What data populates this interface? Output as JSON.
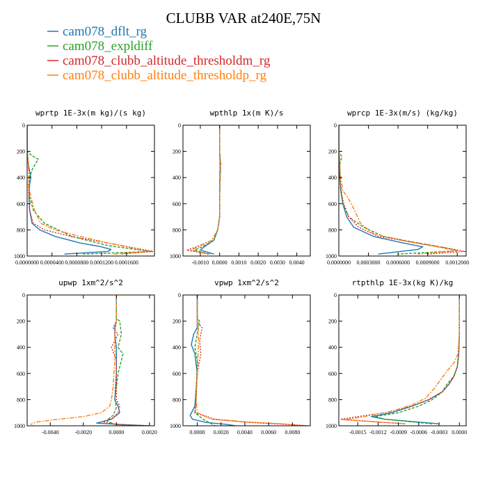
{
  "figure": {
    "title": "CLUBB VAR at240E,75N",
    "legend": [
      {
        "label": "cam078_dflt_rg",
        "color": "#1f77b4"
      },
      {
        "label": "cam078_expldiff",
        "color": "#2ca02c"
      },
      {
        "label": "cam078_clubb_altitude_thresholdm_rg",
        "color": "#d62728"
      },
      {
        "label": "cam078_clubb_altitude_thresholdp_rg",
        "color": "#ff7f0e"
      }
    ]
  },
  "chart_data": [
    {
      "type": "line",
      "title": "wprtp  1E-3x(m kg)/(s kg)",
      "xlim": [
        0,
        0.000205
      ],
      "ylim": [
        1000,
        0
      ],
      "xticks": [
        0,
        4e-05,
        8e-05,
        0.00012,
        0.00016
      ],
      "xtick_labels": [
        "0.0000000",
        "0.0000400",
        "0.0000800",
        "0.0001200",
        "0.0001600"
      ],
      "yticks": [
        0,
        200,
        400,
        600,
        800,
        1000
      ],
      "ytick_labels": [
        "0",
        "200",
        "400",
        "600",
        "800",
        "1000"
      ],
      "series": [
        {
          "name": "cam078_dflt_rg",
          "x": [
            0,
            0,
            2e-06,
            6e-06,
            4e-06,
            3e-06,
            4e-06,
            8e-06,
            2e-05,
            4.5e-05,
            8.5e-05,
            0.00012,
            0.000135,
            0.00013,
            6e-05
          ],
          "y": [
            0,
            200,
            300,
            400,
            450,
            550,
            650,
            750,
            800,
            850,
            900,
            930,
            950,
            965,
            985
          ]
        },
        {
          "name": "cam078_expldiff",
          "x": [
            0,
            0,
            7e-06,
            1.8e-05,
            9e-06,
            4e-06,
            3e-06,
            4e-06,
            1e-05,
            2.8e-05,
            7.2e-05,
            0.00013,
            0.000175,
            0.0002,
            9e-05
          ],
          "y": [
            0,
            200,
            230,
            260,
            330,
            400,
            450,
            550,
            650,
            750,
            850,
            920,
            950,
            965,
            985
          ]
        },
        {
          "name": "cam078_clubb_altitude_thresholdm_rg",
          "x": [
            0,
            0,
            2e-06,
            3e-06,
            2e-06,
            3e-06,
            4e-06,
            1e-05,
            2.8e-05,
            7e-05,
            0.00013,
            0.000175,
            0.000203,
            0.00015
          ],
          "y": [
            0,
            200,
            300,
            400,
            450,
            550,
            650,
            750,
            800,
            850,
            900,
            940,
            965,
            985
          ]
        },
        {
          "name": "cam078_clubb_altitude_thresholdp_rg",
          "x": [
            0,
            0,
            2e-06,
            3e-06,
            2e-06,
            6e-06,
            1.2e-05,
            2.2e-05,
            4.5e-05,
            8.5e-05,
            0.00013,
            0.00017,
            0.000195,
            0.00014
          ],
          "y": [
            0,
            200,
            300,
            400,
            450,
            550,
            650,
            750,
            800,
            850,
            900,
            940,
            965,
            985
          ]
        }
      ]
    },
    {
      "type": "line",
      "title": "wpthlp  1x(m K)/s",
      "xlim": [
        -0.0019,
        0.0047
      ],
      "ylim": [
        1000,
        0
      ],
      "xticks": [
        -0.001,
        0,
        0.001,
        0.002,
        0.003,
        0.004
      ],
      "xtick_labels": [
        "-0.0010",
        "0.0000",
        "0.0010",
        "0.0020",
        "0.0030",
        "0.0040"
      ],
      "yticks": [
        0,
        200,
        400,
        600,
        800,
        1000
      ],
      "ytick_labels": [
        "0",
        "200",
        "400",
        "600",
        "800",
        "1000"
      ],
      "series": [
        {
          "name": "cam078_dflt_rg",
          "x": [
            0,
            0,
            2e-05,
            1e-05,
            0,
            0,
            -0.0001,
            -0.0003,
            -0.0008,
            -0.001,
            -0.0003
          ],
          "y": [
            0,
            200,
            300,
            400,
            550,
            700,
            800,
            880,
            930,
            955,
            985
          ]
        },
        {
          "name": "cam078_expldiff",
          "x": [
            0,
            0,
            5e-05,
            3e-05,
            0,
            0,
            -0.0001,
            -0.0003,
            -0.0009,
            -0.0013,
            -0.0005
          ],
          "y": [
            0,
            200,
            300,
            400,
            550,
            700,
            800,
            880,
            930,
            955,
            985
          ]
        },
        {
          "name": "cam078_clubb_altitude_thresholdm_rg",
          "x": [
            0,
            0,
            5e-05,
            3e-05,
            0,
            0,
            -0.0001,
            -0.0004,
            -0.0012,
            -0.0017,
            -0.0006
          ],
          "y": [
            0,
            200,
            300,
            400,
            550,
            700,
            800,
            880,
            930,
            955,
            985
          ]
        },
        {
          "name": "cam078_clubb_altitude_thresholdp_rg",
          "x": [
            0,
            0,
            2e-05,
            1e-05,
            0,
            0,
            -0.0001,
            -0.0004,
            -0.0011,
            -0.0015,
            -0.0005
          ],
          "y": [
            0,
            200,
            300,
            400,
            550,
            700,
            800,
            880,
            930,
            955,
            985
          ]
        }
      ]
    },
    {
      "type": "line",
      "title": "wprcp  1E-3x(m/s) (kg/kg)",
      "xlim": [
        0,
        0.00129
      ],
      "ylim": [
        1000,
        0
      ],
      "xticks": [
        0,
        0.0003,
        0.0006,
        0.0009,
        0.0012
      ],
      "xtick_labels": [
        "0.0000000",
        "0.0003000",
        "0.0006000",
        "0.0009000",
        "0.0012000"
      ],
      "yticks": [
        0,
        200,
        400,
        600,
        800,
        1000
      ],
      "ytick_labels": [
        "0",
        "200",
        "400",
        "600",
        "800",
        "1000"
      ],
      "series": [
        {
          "name": "cam078_dflt_rg",
          "x": [
            0,
            0,
            1e-05,
            1e-05,
            2e-05,
            4e-05,
            8e-05,
            0.00015,
            0.00035,
            0.00065,
            0.00085,
            0.0008,
            0.0004
          ],
          "y": [
            0,
            200,
            300,
            400,
            500,
            600,
            700,
            780,
            850,
            900,
            930,
            950,
            985
          ]
        },
        {
          "name": "cam078_expldiff",
          "x": [
            0,
            0,
            3e-05,
            1e-05,
            1e-05,
            4e-05,
            0.0001,
            0.00025,
            0.00045,
            0.0008,
            0.0011,
            0.0012,
            0.0006
          ],
          "y": [
            0,
            200,
            240,
            300,
            400,
            600,
            700,
            780,
            850,
            900,
            940,
            960,
            985
          ]
        },
        {
          "name": "cam078_clubb_altitude_thresholdm_rg",
          "x": [
            0,
            0,
            1e-05,
            1e-05,
            2e-05,
            5e-05,
            0.0001,
            0.0002,
            0.0004,
            0.0008,
            0.0011,
            0.00128,
            0.0009
          ],
          "y": [
            0,
            200,
            300,
            400,
            500,
            600,
            700,
            780,
            850,
            900,
            940,
            965,
            985
          ]
        },
        {
          "name": "cam078_clubb_altitude_thresholdp_rg",
          "x": [
            0,
            0,
            1e-05,
            2e-05,
            4e-05,
            9e-05,
            0.00016,
            0.00022,
            0.00035,
            0.0007,
            0.001,
            0.0012,
            0.0008
          ],
          "y": [
            0,
            200,
            300,
            400,
            500,
            550,
            650,
            750,
            830,
            890,
            930,
            960,
            985
          ]
        }
      ]
    },
    {
      "type": "line",
      "title": "upwp  1xm^2/s^2",
      "xlim": [
        -0.0054,
        0.0023
      ],
      "ylim": [
        1000,
        0
      ],
      "xticks": [
        -0.004,
        -0.002,
        0,
        0.002
      ],
      "xtick_labels": [
        "-0.0040",
        "-0.0020",
        "0.0000",
        "0.0020"
      ],
      "yticks": [
        0,
        200,
        400,
        600,
        800,
        1000
      ],
      "ytick_labels": [
        "0",
        "200",
        "400",
        "600",
        "800",
        "1000"
      ],
      "series": [
        {
          "name": "cam078_dflt_rg",
          "x": [
            0,
            0,
            -0.0001,
            -0.0001,
            0,
            0,
            -0.0001,
            0.0001,
            0.0002,
            -0.0003,
            -0.0012,
            0.0002,
            0.0019
          ],
          "y": [
            0,
            200,
            250,
            300,
            400,
            600,
            800,
            850,
            900,
            950,
            980,
            990,
            1000
          ]
        },
        {
          "name": "cam078_expldiff",
          "x": [
            0,
            0,
            0.0002,
            0.0003,
            0.0001,
            0.0004,
            0.0001,
            -0.0001,
            0,
            -0.0002,
            -0.0006,
            -0.0002,
            0.0006
          ],
          "y": [
            0,
            180,
            200,
            300,
            400,
            450,
            600,
            800,
            860,
            920,
            960,
            985,
            1000
          ]
        },
        {
          "name": "cam078_clubb_altitude_thresholdm_rg",
          "x": [
            0,
            0,
            -0.0002,
            0.0001,
            -0.0003,
            0,
            0,
            0.0002,
            0.0001,
            -0.0002,
            -0.0008,
            0,
            0.0021
          ],
          "y": [
            0,
            200,
            250,
            300,
            400,
            500,
            800,
            850,
            900,
            940,
            970,
            990,
            1000
          ]
        },
        {
          "name": "cam078_clubb_altitude_thresholdp_rg",
          "x": [
            0,
            0,
            -0.0001,
            -0.0001,
            -0.0002,
            -0.0003,
            -0.0004,
            -0.0009,
            -0.002,
            -0.0035,
            -0.0048,
            -0.0052
          ],
          "y": [
            0,
            200,
            300,
            500,
            700,
            800,
            850,
            900,
            930,
            950,
            970,
            990
          ]
        }
      ]
    },
    {
      "type": "line",
      "title": "vpwp  1xm^2/s^2",
      "xlim": [
        -0.0012,
        0.0095
      ],
      "ylim": [
        1000,
        0
      ],
      "xticks": [
        0,
        0.002,
        0.004,
        0.006,
        0.008
      ],
      "xtick_labels": [
        "0.0000",
        "0.0020",
        "0.0040",
        "0.0060",
        "0.0080"
      ],
      "yticks": [
        0,
        200,
        400,
        600,
        800,
        1000
      ],
      "ytick_labels": [
        "0",
        "200",
        "400",
        "600",
        "800",
        "1000"
      ],
      "series": [
        {
          "name": "cam078_dflt_rg",
          "x": [
            0,
            0,
            -0.0003,
            -0.0005,
            -0.0002,
            0,
            -0.0002,
            -0.0006,
            -0.0004,
            0.0008,
            0.0025,
            0.0032
          ],
          "y": [
            0,
            250,
            300,
            380,
            450,
            600,
            850,
            920,
            950,
            975,
            990,
            1000
          ]
        },
        {
          "name": "cam078_expldiff",
          "x": [
            0,
            0,
            0.0002,
            0,
            -0.0002,
            0,
            -0.0001,
            -0.0002,
            0.0005,
            0.001,
            0.0015
          ],
          "y": [
            0,
            180,
            200,
            300,
            400,
            500,
            800,
            900,
            950,
            975,
            1000
          ]
        },
        {
          "name": "cam078_clubb_altitude_thresholdm_rg",
          "x": [
            0,
            0,
            0.0004,
            0.0002,
            0.0003,
            0,
            -0.0001,
            -0.0002,
            0.0015,
            0.0045,
            0.0075,
            0.0093
          ],
          "y": [
            0,
            200,
            250,
            350,
            450,
            600,
            800,
            900,
            950,
            975,
            990,
            1000
          ]
        },
        {
          "name": "cam078_clubb_altitude_thresholdp_rg",
          "x": [
            0,
            0,
            0.0001,
            0.0001,
            0,
            -0.0001,
            0,
            0.0012,
            0.004,
            0.0072,
            0.009
          ],
          "y": [
            0,
            200,
            300,
            400,
            600,
            800,
            900,
            950,
            970,
            985,
            1000
          ]
        }
      ]
    },
    {
      "type": "line",
      "title": "rtpthlp  1E-3x(kg K)/kg",
      "xlim": [
        -0.00178,
        0.0001
      ],
      "ylim": [
        1000,
        0
      ],
      "xticks": [
        -0.0015,
        -0.0012,
        -0.0009,
        -0.0006,
        -0.0003,
        0
      ],
      "xtick_labels": [
        "-0.0015",
        "-0.0012",
        "-0.0009",
        "-0.0006",
        "-0.0003",
        "0.0000"
      ],
      "yticks": [
        0,
        200,
        400,
        600,
        800,
        1000
      ],
      "ytick_labels": [
        "0",
        "200",
        "400",
        "600",
        "800",
        "1000"
      ],
      "series": [
        {
          "name": "cam078_dflt_rg",
          "x": [
            0,
            0,
            -1e-05,
            -3e-05,
            -8e-05,
            -0.00015,
            -0.00025,
            -0.00045,
            -0.0007,
            -0.001,
            -0.0013,
            -0.0011,
            -0.0003
          ],
          "y": [
            0,
            300,
            450,
            550,
            620,
            680,
            740,
            800,
            850,
            900,
            930,
            950,
            985
          ]
        },
        {
          "name": "cam078_expldiff",
          "x": [
            0,
            0,
            -1e-05,
            -3e-05,
            -8e-05,
            -0.00018,
            -0.00025,
            -0.0004,
            -0.0006,
            -0.0009,
            -0.00125,
            -0.0011,
            -0.0004
          ],
          "y": [
            0,
            300,
            450,
            550,
            620,
            680,
            740,
            800,
            850,
            900,
            930,
            950,
            985
          ]
        },
        {
          "name": "cam078_clubb_altitude_thresholdm_rg",
          "x": [
            0,
            0,
            -1e-05,
            -3e-05,
            -8e-05,
            -0.00015,
            -0.00025,
            -0.00045,
            -0.0007,
            -0.0011,
            -0.0015,
            -0.00175,
            -0.0008
          ],
          "y": [
            0,
            300,
            450,
            550,
            620,
            680,
            740,
            800,
            850,
            900,
            930,
            950,
            985
          ]
        },
        {
          "name": "cam078_clubb_altitude_thresholdp_rg",
          "x": [
            0,
            0,
            -2e-05,
            -8e-05,
            -0.00018,
            -0.00028,
            -0.00038,
            -0.0005,
            -0.0007,
            -0.001,
            -0.0014,
            -0.0017,
            -0.0008
          ],
          "y": [
            0,
            300,
            450,
            520,
            580,
            650,
            720,
            790,
            840,
            890,
            930,
            955,
            985
          ]
        }
      ]
    }
  ]
}
